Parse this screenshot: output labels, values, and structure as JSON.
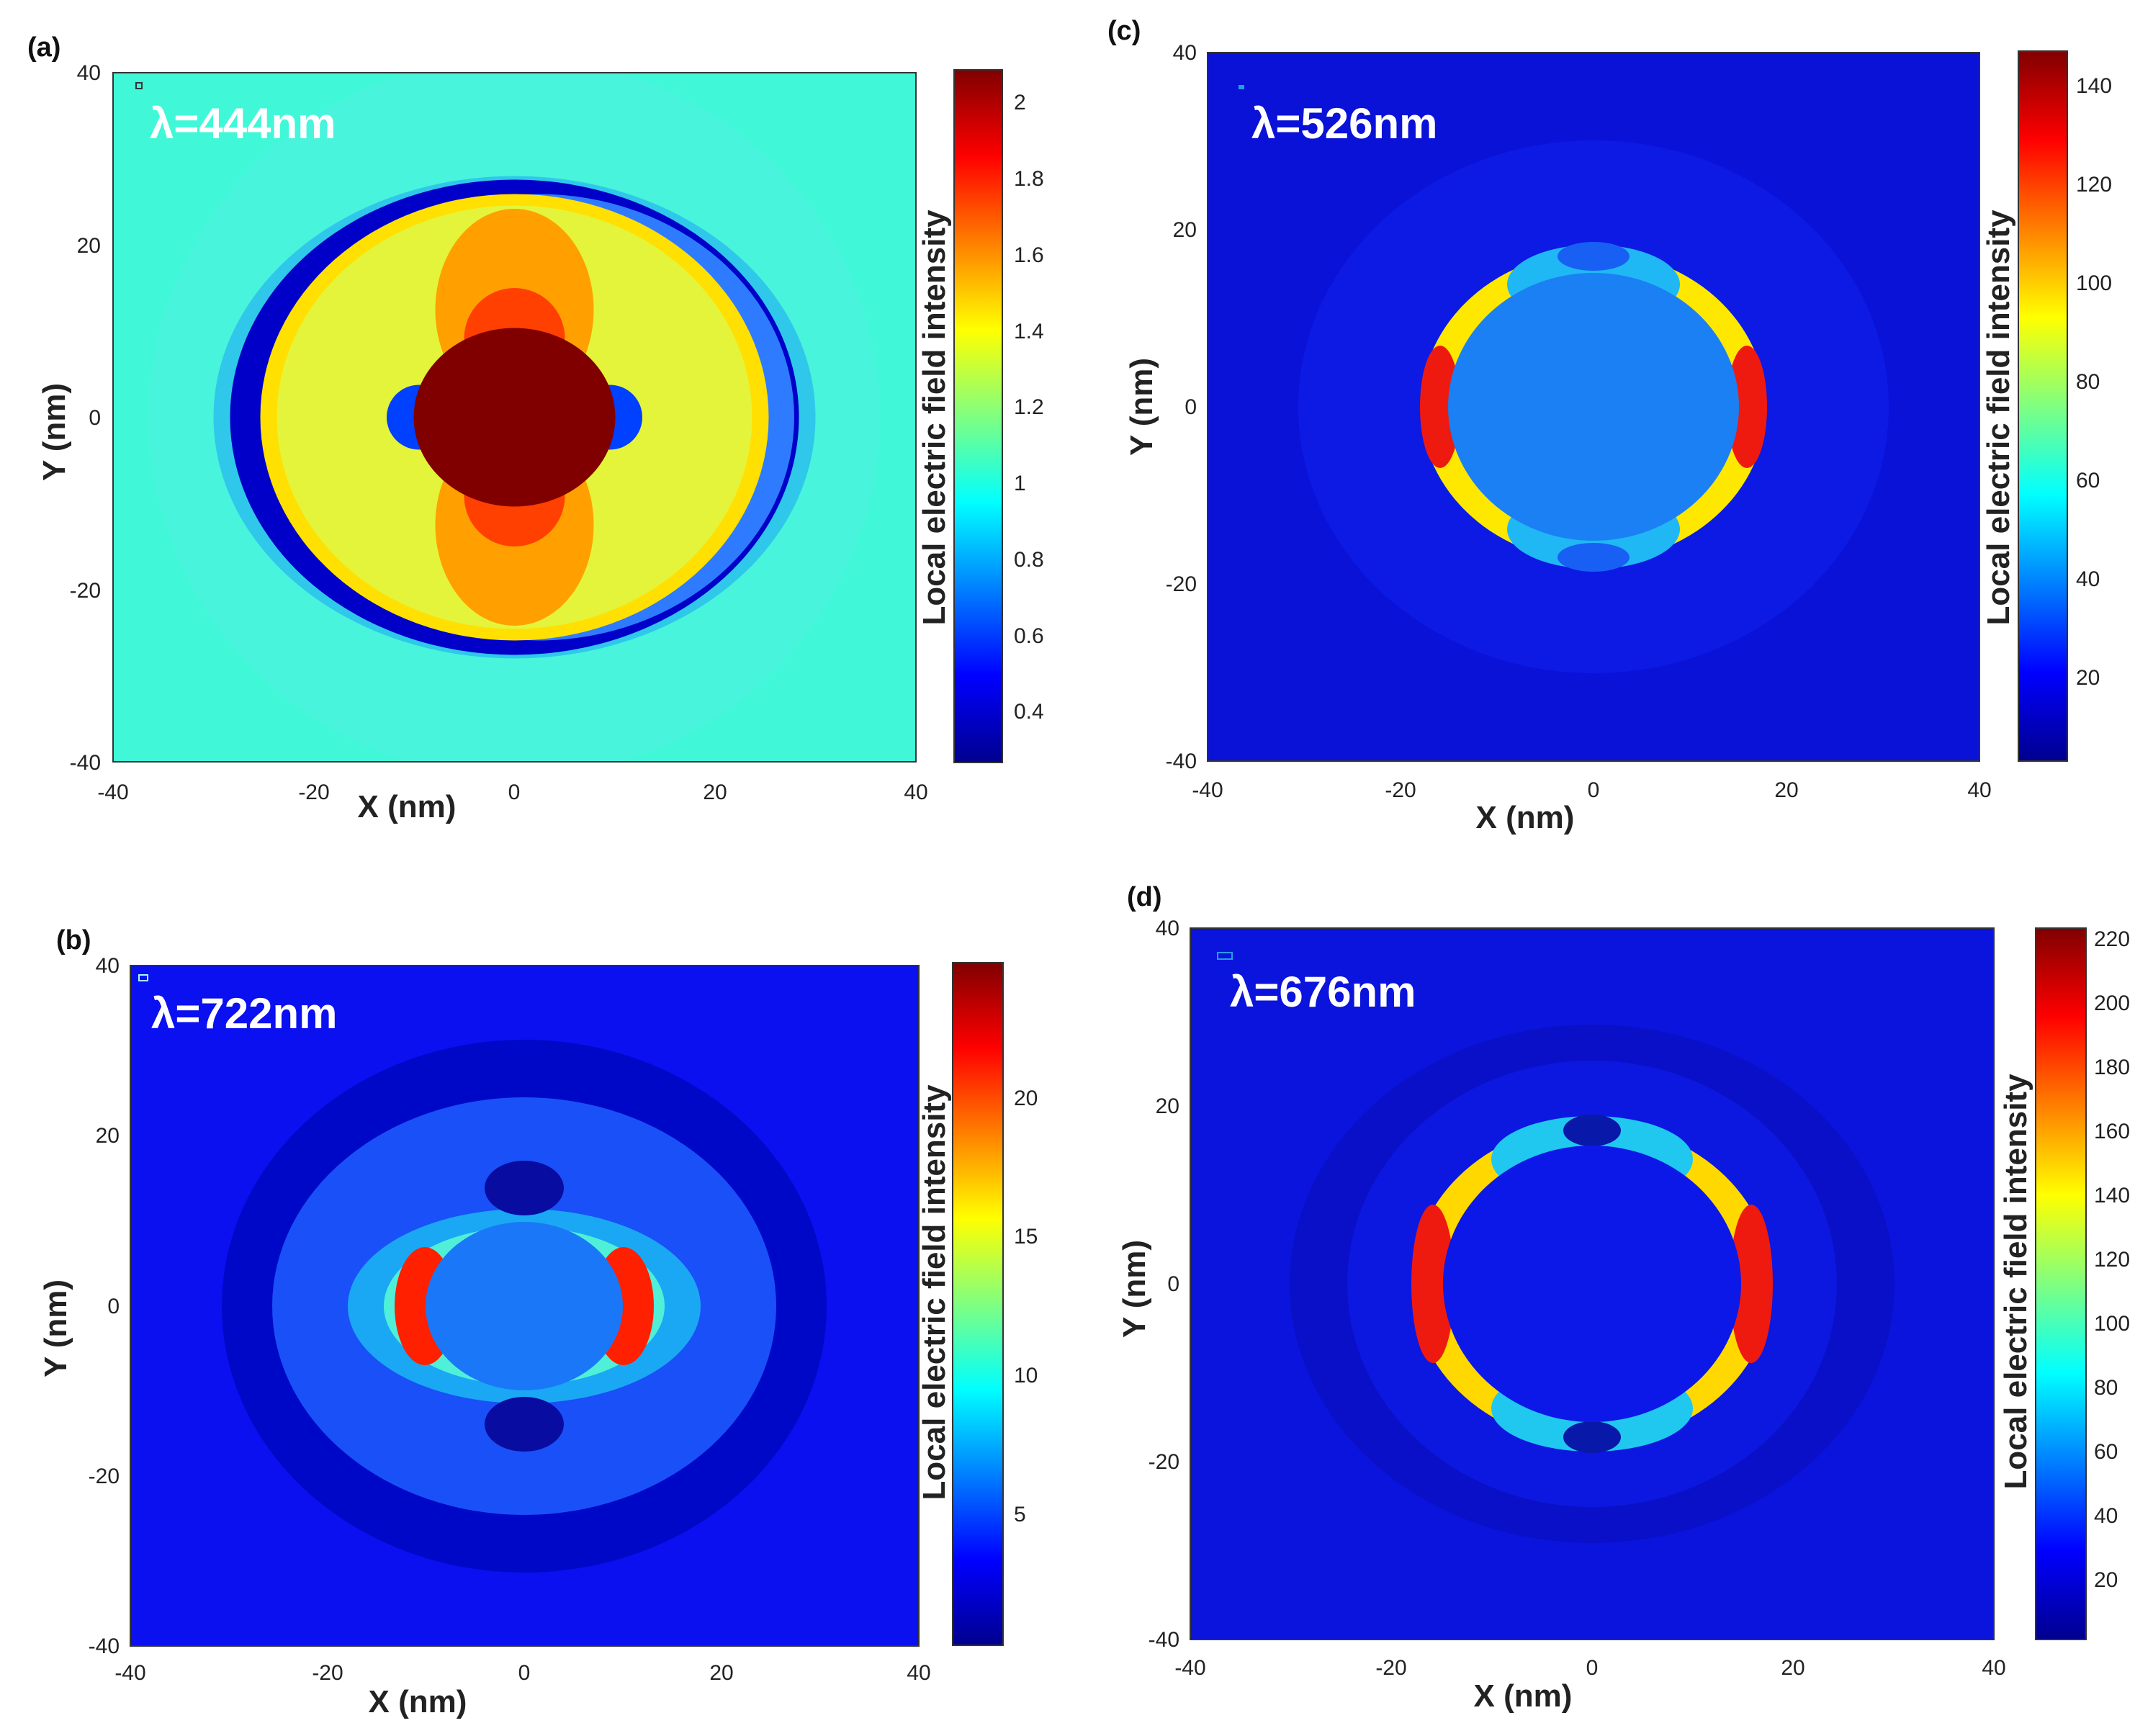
{
  "chart_data": [
    {
      "type": "heatmap",
      "panel": "(a)",
      "annotation": "λ=444nm",
      "xlabel": "X  (nm)",
      "ylabel": "Y  (nm)",
      "xlim": [
        -40,
        40
      ],
      "ylim": [
        -40,
        40
      ],
      "x_ticks": [
        -40,
        -20,
        0,
        20,
        40
      ],
      "y_ticks": [
        40,
        20,
        0,
        -20,
        -40
      ],
      "colorbar_label": "Local electric field intensity",
      "colorbar_range": [
        0.25,
        2.07
      ],
      "colorbar_ticks": [
        0.4,
        0.6,
        0.8,
        1,
        1.2,
        1.4,
        1.6,
        1.8,
        2
      ],
      "background_value": 0.95,
      "core_radius_nm": [
        10,
        9
      ],
      "shell_radius_nm": [
        25,
        25
      ],
      "core_value": 2.07
    },
    {
      "type": "heatmap",
      "panel": "(b)",
      "annotation": "λ=722nm",
      "xlabel": "X  (nm)",
      "ylabel": "Y  (nm)",
      "xlim": [
        -40,
        40
      ],
      "ylim": [
        -40,
        40
      ],
      "x_ticks": [
        -40,
        -20,
        0,
        20,
        40
      ],
      "y_ticks": [
        40,
        20,
        0,
        -20,
        -40
      ],
      "colorbar_label": "Local electric field intensity",
      "colorbar_range": [
        0.5,
        25
      ],
      "colorbar_ticks": [
        5,
        10,
        15,
        20
      ],
      "background_value": 2,
      "core_radius_nm": [
        10,
        9.5
      ],
      "shell_radius_nm": [
        25,
        22
      ],
      "peak_value": 24
    },
    {
      "type": "heatmap",
      "panel": "(c)",
      "annotation": "λ=526nm",
      "xlabel": "X  (nm)",
      "ylabel": "Y  (nm)",
      "xlim": [
        -40,
        40
      ],
      "ylim": [
        -40,
        40
      ],
      "x_ticks": [
        -40,
        -20,
        0,
        20,
        40
      ],
      "y_ticks": [
        40,
        20,
        0,
        -20,
        -40
      ],
      "colorbar_label": "Local electric field intensity",
      "colorbar_range": [
        2,
        146
      ],
      "colorbar_ticks": [
        20,
        40,
        60,
        80,
        100,
        120,
        140
      ],
      "background_value": 8,
      "inner_radius_nm": [
        15,
        15
      ],
      "outer_radius_nm": [
        18,
        18
      ],
      "peak_value": 146
    },
    {
      "type": "heatmap",
      "panel": "(d)",
      "annotation": "λ=676nm",
      "xlabel": "X  (nm)",
      "ylabel": "Y  (nm)",
      "xlim": [
        -40,
        40
      ],
      "ylim": [
        -40,
        40
      ],
      "x_ticks": [
        -40,
        -20,
        0,
        20,
        40
      ],
      "y_ticks": [
        40,
        20,
        0,
        -20,
        -40
      ],
      "colorbar_label": "Local electric field intensity",
      "colorbar_range": [
        2,
        224
      ],
      "colorbar_ticks": [
        20,
        40,
        60,
        80,
        100,
        120,
        140,
        160,
        180,
        200,
        220
      ],
      "background_value": 10,
      "inner_radius_nm": [
        15,
        15
      ],
      "outer_radius_nm": [
        18,
        18
      ],
      "peak_value": 224
    }
  ]
}
